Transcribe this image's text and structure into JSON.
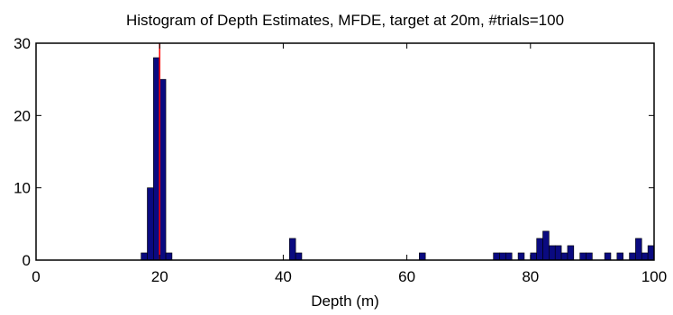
{
  "chart_data": {
    "type": "bar",
    "title": "Histogram of Depth Estimates, MFDE, target at 20m, #trials=100",
    "xlabel": "Depth (m)",
    "ylabel": "",
    "xlim": [
      0,
      100
    ],
    "ylim": [
      0,
      30
    ],
    "x_ticks": [
      "0",
      "20",
      "40",
      "60",
      "80",
      "100"
    ],
    "y_ticks": [
      "0",
      "10",
      "20",
      "30"
    ],
    "grid": false,
    "bar_color": "#0a0a80",
    "reference_line": {
      "x": 20,
      "color": "#ff0000"
    },
    "bin_width": 1,
    "bins": [
      {
        "x": 17,
        "count": 1
      },
      {
        "x": 18,
        "count": 10
      },
      {
        "x": 19,
        "count": 28
      },
      {
        "x": 20,
        "count": 25
      },
      {
        "x": 21,
        "count": 1
      },
      {
        "x": 41,
        "count": 3
      },
      {
        "x": 42,
        "count": 1
      },
      {
        "x": 62,
        "count": 1
      },
      {
        "x": 74,
        "count": 1
      },
      {
        "x": 75,
        "count": 1
      },
      {
        "x": 76,
        "count": 1
      },
      {
        "x": 78,
        "count": 1
      },
      {
        "x": 80,
        "count": 1
      },
      {
        "x": 81,
        "count": 3
      },
      {
        "x": 82,
        "count": 4
      },
      {
        "x": 83,
        "count": 2
      },
      {
        "x": 84,
        "count": 2
      },
      {
        "x": 85,
        "count": 1
      },
      {
        "x": 86,
        "count": 2
      },
      {
        "x": 88,
        "count": 1
      },
      {
        "x": 89,
        "count": 1
      },
      {
        "x": 92,
        "count": 1
      },
      {
        "x": 94,
        "count": 1
      },
      {
        "x": 96,
        "count": 1
      },
      {
        "x": 97,
        "count": 3
      },
      {
        "x": 98,
        "count": 1
      },
      {
        "x": 99,
        "count": 2
      }
    ]
  }
}
